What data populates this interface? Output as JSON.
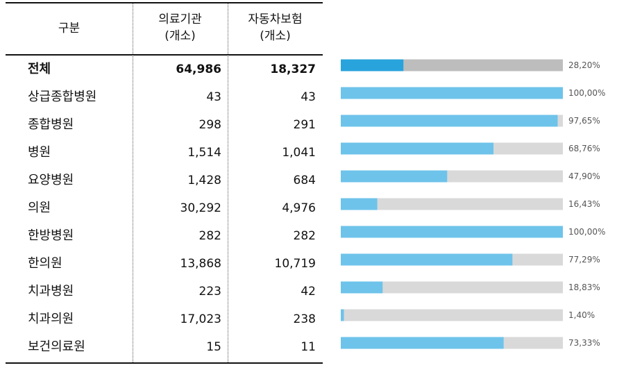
{
  "table": {
    "headers": {
      "category": "구분",
      "medical_l1": "의료기관",
      "medical_l2": "(개소)",
      "auto_l1": "자동차보험",
      "auto_l2": "(개소)"
    },
    "rows": [
      {
        "name": "전체",
        "medical": "64,986",
        "auto": "18,327"
      },
      {
        "name": "상급종합병원",
        "medical": "43",
        "auto": "43"
      },
      {
        "name": "종합병원",
        "medical": "298",
        "auto": "291"
      },
      {
        "name": "병원",
        "medical": "1,514",
        "auto": "1,041"
      },
      {
        "name": "요양병원",
        "medical": "1,428",
        "auto": "684"
      },
      {
        "name": "의원",
        "medical": "30,292",
        "auto": "4,976"
      },
      {
        "name": "한방병원",
        "medical": "282",
        "auto": "282"
      },
      {
        "name": "한의원",
        "medical": "13,868",
        "auto": "10,719"
      },
      {
        "name": "치과병원",
        "medical": "223",
        "auto": "42"
      },
      {
        "name": "치과의원",
        "medical": "17,023",
        "auto": "238"
      },
      {
        "name": "보건의료원",
        "medical": "15",
        "auto": "11"
      }
    ]
  },
  "chart_data": {
    "type": "bar",
    "orientation": "horizontal",
    "stacked_to": 100,
    "xlim": [
      0,
      100
    ],
    "categories": [
      "전체",
      "상급종합병원",
      "종합병원",
      "병원",
      "요양병원",
      "의원",
      "한방병원",
      "한의원",
      "치과병원",
      "치과의원",
      "보건의료원"
    ],
    "values": [
      28.2,
      100.0,
      97.65,
      68.76,
      47.9,
      16.43,
      100.0,
      77.29,
      18.83,
      1.4,
      73.33
    ],
    "value_labels": [
      "28,20%",
      "100,00%",
      "97,65%",
      "68,76%",
      "47,90%",
      "16,43%",
      "100,00%",
      "77,29%",
      "18,83%",
      "1,40%",
      "73,33%"
    ],
    "colors": {
      "bar_total": "#29a3dc",
      "bar": "#6ec3ea",
      "remainder_total": "#bdbdbd",
      "remainder": "#d9d9d9",
      "label": "#555555"
    }
  }
}
